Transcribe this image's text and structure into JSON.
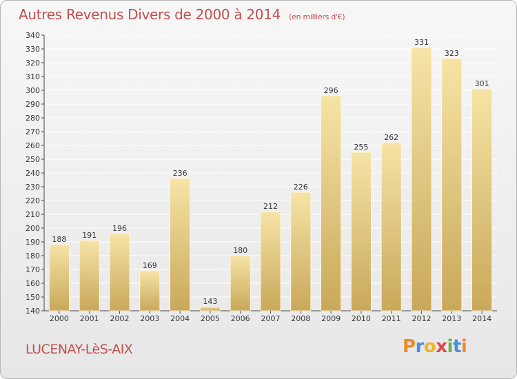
{
  "header": {
    "title": "Autres Revenus Divers de 2000 à 2014",
    "subtitle": "(en milliers d'€)"
  },
  "footer": {
    "location": "LUCENAY-LèS-AIX",
    "brand": [
      "P",
      "r",
      "o",
      "x",
      "i",
      "t",
      "i"
    ]
  },
  "colors": {
    "title": "#c0504d",
    "bar_light": "#f6e4a6",
    "bar_dark": "#c9a85a",
    "grid": "#ffffff",
    "brand": [
      "#f08a24",
      "#4a90d9",
      "#f0b428",
      "#d94a4a",
      "#6ab04c",
      "#4a90d9",
      "#f08a24"
    ]
  },
  "chart_data": {
    "type": "bar",
    "categories": [
      "2000",
      "2001",
      "2002",
      "2003",
      "2004",
      "2005",
      "2006",
      "2007",
      "2008",
      "2009",
      "2010",
      "2011",
      "2012",
      "2013",
      "2014"
    ],
    "values": [
      188,
      191,
      196,
      169,
      236,
      143,
      180,
      212,
      226,
      296,
      255,
      262,
      331,
      323,
      301
    ],
    "ylim": [
      140,
      340
    ],
    "yticks": [
      140,
      150,
      160,
      170,
      180,
      190,
      200,
      210,
      220,
      230,
      240,
      250,
      260,
      270,
      280,
      290,
      300,
      310,
      320,
      330,
      340
    ],
    "grid": true,
    "data_labels": true
  }
}
